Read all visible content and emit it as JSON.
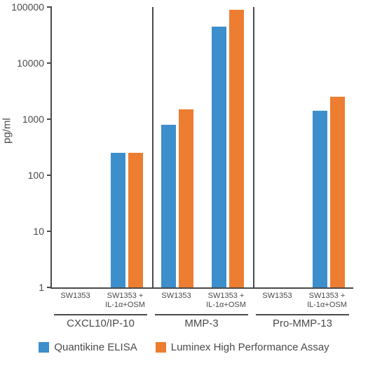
{
  "chart": {
    "type": "bar",
    "scale": "log",
    "ylim": [
      1,
      100000
    ],
    "yticks": [
      1,
      10,
      100,
      1000,
      10000,
      100000
    ],
    "ylabel": "pg/ml",
    "background_color": "#ffffff",
    "axis_color": "#4a4a4a",
    "series": [
      {
        "name": "Quantikine ELISA",
        "color": "#3d8ecc"
      },
      {
        "name": "Luminex High Performance Assay",
        "color": "#ed7d31"
      }
    ],
    "groups": [
      {
        "major": "CXCL10/IP-10",
        "minors": [
          {
            "label": "SW1353",
            "values": [
              0,
              0
            ]
          },
          {
            "label": "SW1353 +\nIL-1α+OSM",
            "values": [
              250,
              250
            ]
          }
        ]
      },
      {
        "major": "MMP-3",
        "minors": [
          {
            "label": "SW1353",
            "values": [
              800,
              1500
            ]
          },
          {
            "label": "SW1353 +\nIL-1α+OSM",
            "values": [
              45000,
              90000
            ]
          }
        ]
      },
      {
        "major": "Pro-MMP-13",
        "minors": [
          {
            "label": "SW1353",
            "values": [
              0,
              0
            ]
          },
          {
            "label": "SW1353 +\nIL-1α+OSM",
            "values": [
              1400,
              2500
            ]
          }
        ]
      }
    ],
    "label_fontsize": 15,
    "minor_label_fontsize": 11
  }
}
